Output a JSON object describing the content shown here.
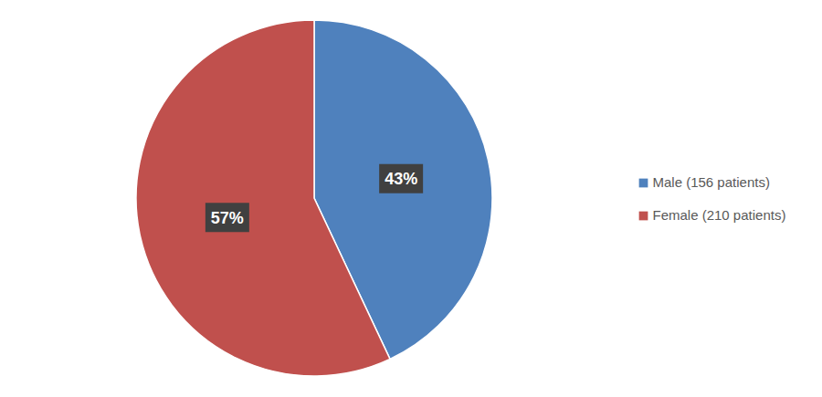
{
  "chart_data": {
    "type": "pie",
    "categories": [
      "Male (156 patients)",
      "Female (210 patients)"
    ],
    "values": [
      43,
      57
    ],
    "value_labels": [
      "43%",
      "57%"
    ],
    "colors": [
      "#4f81bd",
      "#c0504d"
    ],
    "data_labels": true,
    "legend": "right"
  }
}
